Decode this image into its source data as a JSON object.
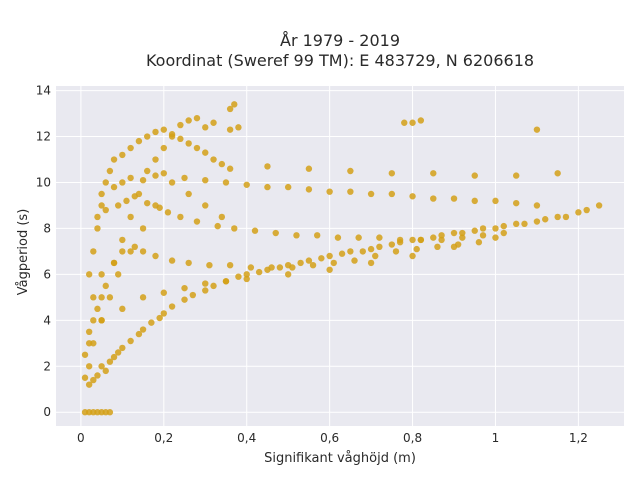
{
  "chart_data": {
    "type": "scatter",
    "title_lines": [
      "År 1979 - 2019",
      "Koordinat (Sweref 99 TM): E 483729, N 6206618"
    ],
    "xlabel": "Signifikant våghöjd (m)",
    "ylabel": "Vågperiod (s)",
    "xlim": [
      -0.06,
      1.31
    ],
    "ylim": [
      -0.6,
      14.2
    ],
    "x_ticks": [
      0,
      0.2,
      0.4,
      0.6,
      0.8,
      1,
      1.2
    ],
    "x_tick_labels": [
      "0",
      "0,2",
      "0,4",
      "0,6",
      "0,8",
      "1",
      "1,2"
    ],
    "y_ticks": [
      0,
      2,
      4,
      6,
      8,
      10,
      12,
      14
    ],
    "y_tick_labels": [
      "0",
      "2",
      "4",
      "6",
      "8",
      "10",
      "12",
      "14"
    ],
    "grid": true,
    "colors": {
      "plot_background": "#E9E9F0",
      "grid": "#ffffff",
      "marker": "#D4A017",
      "text": "#2a2a2a"
    },
    "series": [
      {
        "x": [
          0.01,
          0.02,
          0.03,
          0.04,
          0.05,
          0.06,
          0.07,
          0.01,
          0.01,
          0.02,
          0.02,
          0.03,
          0.03,
          0.04,
          0.05,
          0.05,
          0.06,
          0.07,
          0.08,
          0.09,
          0.1,
          0.12,
          0.14,
          0.15,
          0.17,
          0.19,
          0.2,
          0.22,
          0.25,
          0.27,
          0.3,
          0.32,
          0.35,
          0.38,
          0.4,
          0.43,
          0.45,
          0.48,
          0.5,
          0.53,
          0.55,
          0.58,
          0.6,
          0.63,
          0.65,
          0.68,
          0.7,
          0.72,
          0.75,
          0.77,
          0.8,
          0.82,
          0.85,
          0.87,
          0.9,
          0.92,
          0.95,
          0.97,
          1.0,
          1.02,
          1.05,
          1.07,
          1.1,
          1.12,
          1.15,
          1.17,
          1.2,
          1.22,
          1.25,
          0.02,
          0.03,
          0.04,
          0.05,
          0.06,
          0.07,
          0.08,
          0.1,
          0.12,
          0.14,
          0.16,
          0.18,
          0.2,
          0.22,
          0.24,
          0.26,
          0.28,
          0.3,
          0.32,
          0.34,
          0.36,
          0.05,
          0.08,
          0.1,
          0.12,
          0.15,
          0.18,
          0.2,
          0.25,
          0.3,
          0.35,
          0.4,
          0.45,
          0.5,
          0.55,
          0.6,
          0.65,
          0.7,
          0.75,
          0.8,
          0.85,
          0.9,
          0.95,
          1.0,
          1.05,
          1.1,
          0.04,
          0.06,
          0.09,
          0.11,
          0.13,
          0.16,
          0.19,
          0.21,
          0.24,
          0.28,
          0.33,
          0.37,
          0.42,
          0.47,
          0.52,
          0.57,
          0.62,
          0.67,
          0.72,
          0.77,
          0.82,
          0.87,
          0.92,
          0.97,
          1.02,
          0.03,
          0.05,
          0.08,
          0.1,
          0.13,
          0.15,
          0.18,
          0.22,
          0.26,
          0.31,
          0.36,
          0.41,
          0.46,
          0.51,
          0.56,
          0.61,
          0.66,
          0.71,
          0.76,
          0.81,
          0.86,
          0.91,
          0.96,
          0.05,
          0.1,
          0.15,
          0.2,
          0.25,
          0.3,
          0.35,
          0.4,
          0.5,
          0.6,
          0.7,
          0.8,
          0.9,
          1.0,
          0.02,
          0.04,
          0.06,
          0.08,
          0.1,
          0.12,
          0.14,
          0.16,
          0.18,
          0.2,
          0.22,
          0.24,
          0.26,
          0.28,
          0.3,
          0.32,
          0.36,
          0.37,
          0.36,
          0.38,
          0.78,
          0.8,
          0.82,
          1.1,
          0.45,
          0.55,
          0.65,
          0.75,
          0.85,
          0.95,
          1.05,
          1.15,
          0.02,
          0.03,
          0.05,
          0.07,
          0.09,
          0.12,
          0.15,
          0.18,
          0.22,
          0.26,
          0.3,
          0.34
        ],
        "y": [
          0,
          0,
          0,
          0,
          0,
          0,
          0,
          1.5,
          2.5,
          1.2,
          3,
          1.4,
          4,
          1.6,
          2,
          5,
          1.8,
          2.2,
          2.4,
          2.6,
          2.8,
          3.1,
          3.4,
          3.6,
          3.9,
          4.1,
          4.3,
          4.6,
          4.9,
          5.1,
          5.3,
          5.5,
          5.7,
          5.9,
          6.0,
          6.1,
          6.2,
          6.3,
          6.4,
          6.5,
          6.6,
          6.7,
          6.8,
          6.9,
          7.0,
          7.0,
          7.1,
          7.2,
          7.3,
          7.4,
          7.5,
          7.5,
          7.6,
          7.7,
          7.8,
          7.8,
          7.9,
          8.0,
          8.0,
          8.1,
          8.2,
          8.2,
          8.3,
          8.4,
          8.5,
          8.5,
          8.7,
          8.8,
          9.0,
          6,
          7,
          8,
          9,
          10,
          10.5,
          11,
          11.2,
          11.5,
          11.8,
          12,
          12.2,
          12.3,
          12.1,
          11.9,
          11.7,
          11.5,
          11.3,
          11.0,
          10.8,
          10.6,
          9.5,
          9.8,
          10,
          10.2,
          10.1,
          10.3,
          10.4,
          10.2,
          10.1,
          10.0,
          9.9,
          9.8,
          9.8,
          9.7,
          9.6,
          9.6,
          9.5,
          9.5,
          9.4,
          9.3,
          9.3,
          9.2,
          9.2,
          9.1,
          9.0,
          8.5,
          8.8,
          9.0,
          9.2,
          9.4,
          9.1,
          8.9,
          8.7,
          8.5,
          8.3,
          8.1,
          8.0,
          7.9,
          7.8,
          7.7,
          7.7,
          7.6,
          7.6,
          7.6,
          7.5,
          7.5,
          7.5,
          7.6,
          7.7,
          7.8,
          5,
          6,
          6.5,
          7,
          7.2,
          7.0,
          6.8,
          6.6,
          6.5,
          6.4,
          6.4,
          6.3,
          6.3,
          6.3,
          6.4,
          6.5,
          6.6,
          6.8,
          7.0,
          7.1,
          7.2,
          7.3,
          7.4,
          4,
          4.5,
          5,
          5.2,
          5.4,
          5.6,
          5.7,
          5.8,
          6.0,
          6.2,
          6.5,
          6.8,
          7.2,
          7.6,
          3.5,
          4.5,
          5.5,
          6.5,
          7.5,
          8.5,
          9.5,
          10.5,
          11,
          11.5,
          12,
          12.5,
          12.7,
          12.8,
          12.4,
          12.6,
          13.2,
          13.4,
          12.3,
          12.4,
          12.6,
          12.6,
          12.7,
          12.3,
          10.7,
          10.6,
          10.5,
          10.4,
          10.4,
          10.3,
          10.3,
          10.4,
          2.0,
          3.0,
          4.0,
          5.0,
          6.0,
          7.0,
          8.0,
          9.0,
          10.0,
          9.5,
          9.0,
          8.5
        ]
      }
    ]
  }
}
